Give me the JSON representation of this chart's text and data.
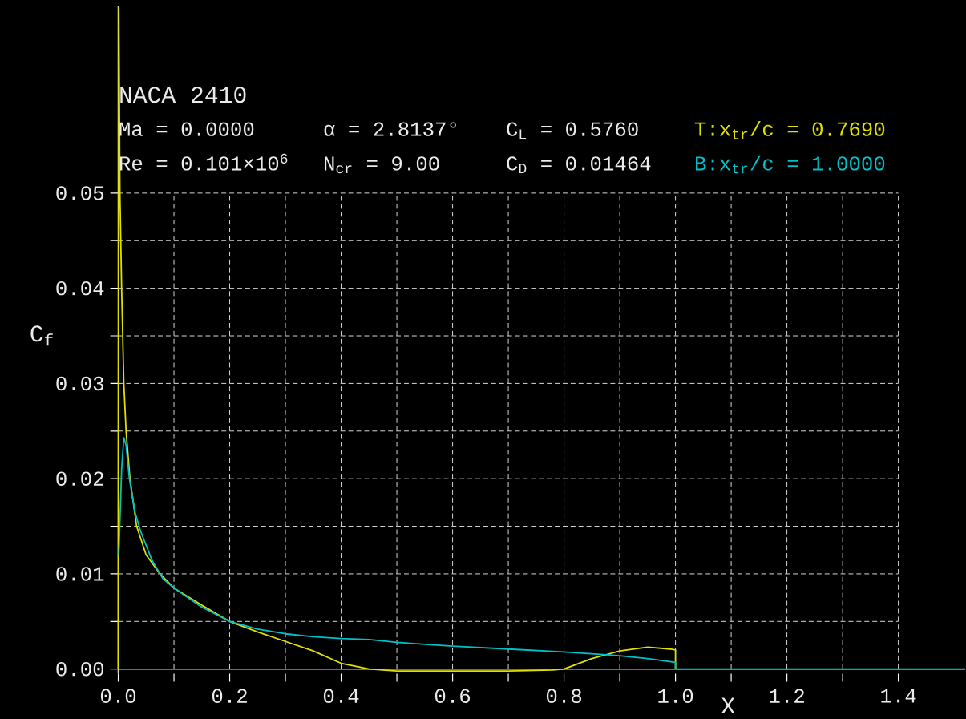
{
  "chart_data": {
    "type": "line",
    "xlabel": "X",
    "ylabel": "C$_{f}$",
    "annotations": [
      "NACA 2410",
      "Ma = 0.0000",
      "α  = 2.8137°",
      "C$_{L}$  = 0.5760",
      "T:x$_{tr}$/c = 0.7690",
      "Re = 0.101×10$^{6}$",
      "N$_{cr}$ = 9.00",
      "C$_{D}$  = 0.01464",
      "B:x$_{tr}$/c = 1.0000"
    ],
    "xlim": [
      0,
      1.52
    ],
    "ylim": [
      -0.0005,
      0.0697
    ],
    "xticks": [
      {
        "value": 0,
        "label": "0.0"
      },
      {
        "value": 0.1,
        "label": null
      },
      {
        "value": 0.2,
        "label": "0.2"
      },
      {
        "value": 0.3,
        "label": null
      },
      {
        "value": 0.4,
        "label": "0.4"
      },
      {
        "value": 0.5,
        "label": null
      },
      {
        "value": 0.6,
        "label": "0.6"
      },
      {
        "value": 0.7,
        "label": null
      },
      {
        "value": 0.8,
        "label": "0.8"
      },
      {
        "value": 0.9,
        "label": null
      },
      {
        "value": 1.0,
        "label": "1.0"
      },
      {
        "value": 1.1,
        "label": null
      },
      {
        "value": 1.2,
        "label": "1.2"
      },
      {
        "value": 1.3,
        "label": null
      },
      {
        "value": 1.4,
        "label": "1.4"
      }
    ],
    "yticks": [
      {
        "value": 0,
        "label": "0.00"
      },
      {
        "value": 0.005,
        "label": null
      },
      {
        "value": 0.01,
        "label": "0.01"
      },
      {
        "value": 0.015,
        "label": null
      },
      {
        "value": 0.02,
        "label": "0.02"
      },
      {
        "value": 0.025,
        "label": null
      },
      {
        "value": 0.03,
        "label": "0.03"
      },
      {
        "value": 0.035,
        "label": null
      },
      {
        "value": 0.04,
        "label": "0.04"
      },
      {
        "value": 0.045,
        "label": null
      },
      {
        "value": 0.05,
        "label": "0.05"
      }
    ],
    "grid": true,
    "series": [
      {
        "color": "#e0e000",
        "x": [
          0,
          0.001,
          0.003,
          0.006,
          0.01,
          0.014,
          0.021,
          0.033,
          0.05,
          0.075,
          0.1,
          0.15,
          0.2,
          0.25,
          0.3,
          0.35,
          0.4,
          0.45,
          0.5,
          0.6,
          0.7,
          0.78,
          0.8,
          0.85,
          0.9,
          0.95,
          0.99,
          1.0,
          1.0
        ],
        "values": [
          0,
          0.0695,
          0.05,
          0.04,
          0.03,
          0.025,
          0.02,
          0.015,
          0.012,
          0.01,
          0.0085,
          0.0067,
          0.005,
          0.0039,
          0.0029,
          0.0019,
          0.0006,
          0,
          -0.0002,
          -0.0002,
          -0.0002,
          -0.0001,
          0,
          0.0011,
          0.0019,
          0.0023,
          0.0021,
          0.002,
          0
        ]
      },
      {
        "color": "#00c0c8",
        "x": [
          0.001,
          0.003,
          0.006,
          0.01,
          0.014,
          0.02,
          0.03,
          0.04,
          0.06,
          0.08,
          0.1,
          0.15,
          0.2,
          0.25,
          0.3,
          0.35,
          0.4,
          0.45,
          0.5,
          0.6,
          0.7,
          0.8,
          0.9,
          0.95,
          1.0,
          1.0,
          1.52
        ],
        "values": [
          0.012,
          0.0155,
          0.021,
          0.0243,
          0.0235,
          0.02,
          0.0165,
          0.0145,
          0.0115,
          0.0095,
          0.0085,
          0.0065,
          0.005,
          0.0042,
          0.0037,
          0.0034,
          0.0032,
          0.0031,
          0.0028,
          0.0024,
          0.0021,
          0.0018,
          0.0014,
          0.0011,
          0.0007,
          0,
          0
        ]
      }
    ]
  }
}
